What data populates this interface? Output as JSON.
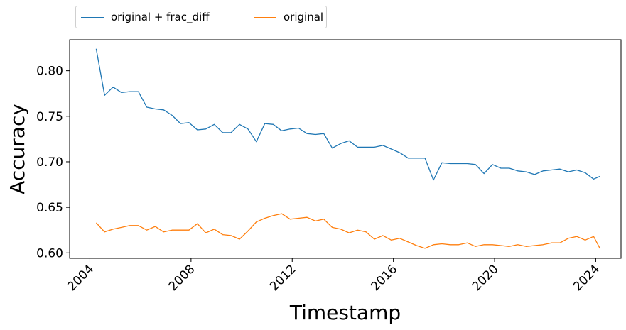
{
  "chart_data": {
    "type": "line",
    "xlabel": "Timestamp",
    "ylabel": "Accuracy",
    "x_tick_labels": [
      "2004",
      "2008",
      "2012",
      "2016",
      "2020",
      "2024"
    ],
    "y_tick_labels": [
      "0.60",
      "0.65",
      "0.70",
      "0.75",
      "0.80"
    ],
    "xlim": [
      2003.2,
      2025.0
    ],
    "ylim": [
      0.594,
      0.834
    ],
    "legend_position": "top-left, above plot",
    "x_dates": [
      "2004-04",
      "2004-08",
      "2004-12",
      "2005-04",
      "2005-08",
      "2005-12",
      "2006-04",
      "2006-08",
      "2006-12",
      "2007-04",
      "2007-08",
      "2007-12",
      "2008-04",
      "2008-08",
      "2008-12",
      "2009-04",
      "2009-08",
      "2009-12",
      "2010-04",
      "2010-08",
      "2010-12",
      "2011-04",
      "2011-08",
      "2011-12",
      "2012-04",
      "2012-08",
      "2012-12",
      "2013-04",
      "2013-08",
      "2013-12",
      "2014-04",
      "2014-08",
      "2014-12",
      "2015-04",
      "2015-08",
      "2015-12",
      "2016-04",
      "2016-08",
      "2016-12",
      "2017-04",
      "2017-08",
      "2017-12",
      "2018-04",
      "2018-08",
      "2018-12",
      "2019-04",
      "2019-08",
      "2019-12",
      "2020-04",
      "2020-08",
      "2020-12",
      "2021-04",
      "2021-08",
      "2021-12",
      "2022-04",
      "2022-08",
      "2022-12",
      "2023-04",
      "2023-08",
      "2023-12",
      "2024-03"
    ],
    "series": [
      {
        "name": "original + frac_diff",
        "color": "#1f77b4",
        "values": [
          0.824,
          0.773,
          0.782,
          0.776,
          0.777,
          0.777,
          0.76,
          0.758,
          0.757,
          0.751,
          0.742,
          0.743,
          0.735,
          0.736,
          0.741,
          0.732,
          0.732,
          0.741,
          0.736,
          0.722,
          0.742,
          0.741,
          0.734,
          0.736,
          0.737,
          0.731,
          0.73,
          0.731,
          0.715,
          0.72,
          0.723,
          0.716,
          0.716,
          0.716,
          0.718,
          0.714,
          0.71,
          0.704,
          0.704,
          0.704,
          0.68,
          0.699,
          0.698,
          0.698,
          0.698,
          0.697,
          0.687,
          0.697,
          0.693,
          0.693,
          0.69,
          0.689,
          0.686,
          0.69,
          0.691,
          0.692,
          0.689,
          0.691,
          0.688,
          0.681,
          0.684
        ]
      },
      {
        "name": "original",
        "color": "#ff7f0e",
        "values": [
          0.633,
          0.623,
          0.626,
          0.628,
          0.63,
          0.63,
          0.625,
          0.629,
          0.623,
          0.625,
          0.625,
          0.625,
          0.632,
          0.622,
          0.626,
          0.62,
          0.619,
          0.615,
          0.624,
          0.634,
          0.638,
          0.641,
          0.643,
          0.637,
          0.638,
          0.639,
          0.635,
          0.637,
          0.628,
          0.626,
          0.622,
          0.625,
          0.623,
          0.615,
          0.619,
          0.614,
          0.616,
          0.612,
          0.608,
          0.605,
          0.609,
          0.61,
          0.609,
          0.609,
          0.611,
          0.607,
          0.609,
          0.609,
          0.608,
          0.607,
          0.609,
          0.607,
          0.608,
          0.609,
          0.611,
          0.611,
          0.616,
          0.618,
          0.614,
          0.618,
          0.605
        ]
      }
    ]
  }
}
